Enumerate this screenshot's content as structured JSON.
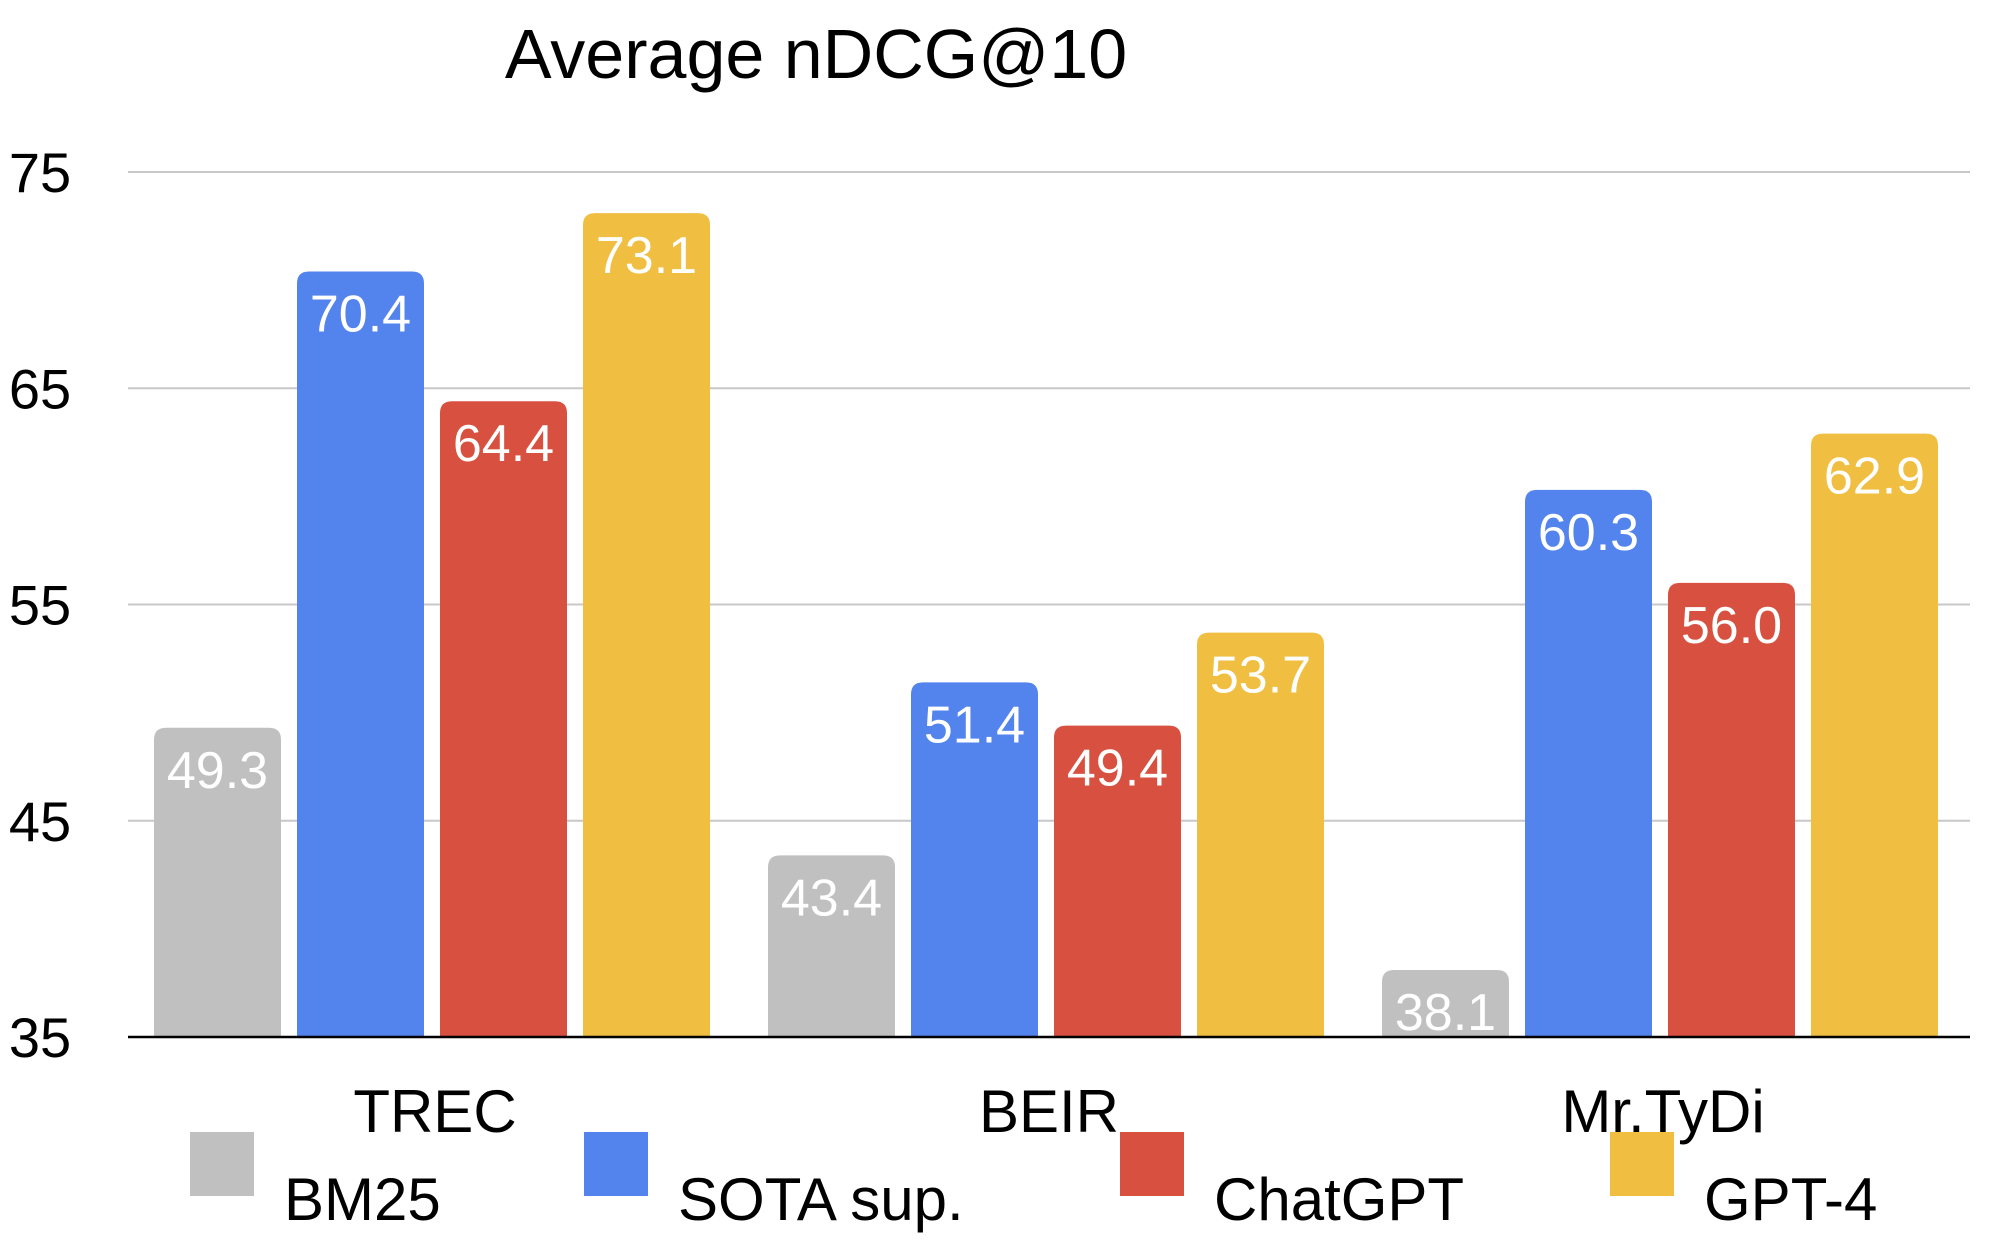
{
  "chart_data": {
    "type": "bar",
    "title": "Average nDCG@10",
    "xlabel": "",
    "ylabel": "",
    "categories": [
      "TREC",
      "BEIR",
      "Mr.TyDi"
    ],
    "series": [
      {
        "name": "BM25",
        "color": "#c0c0c0",
        "values": [
          49.3,
          43.4,
          38.1
        ]
      },
      {
        "name": "SOTA sup.",
        "color": "#5383ec",
        "values": [
          70.4,
          51.4,
          60.3
        ]
      },
      {
        "name": "ChatGPT",
        "color": "#d85140",
        "values": [
          64.4,
          49.4,
          56.0
        ]
      },
      {
        "name": "GPT-4",
        "color": "#f0bf42",
        "values": [
          73.1,
          53.7,
          62.9
        ]
      }
    ],
    "ylim": [
      35,
      75
    ],
    "yticks": [
      35,
      45,
      55,
      65,
      75
    ],
    "grid": true,
    "legend_position": "bottom",
    "gridline_color": "#c8c8c8",
    "axis_color": "#000000",
    "data_label_color": "#ffffff"
  }
}
